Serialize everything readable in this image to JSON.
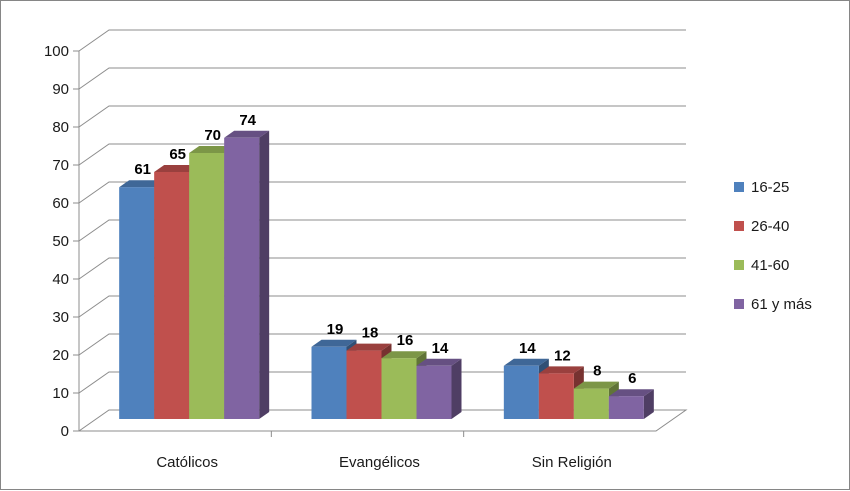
{
  "chart_data": {
    "type": "bar",
    "categories": [
      "Católicos",
      "Evangélicos",
      "Sin Religión"
    ],
    "series": [
      {
        "name": "16-25",
        "values": [
          61,
          19,
          14
        ],
        "color": "#4F81BD"
      },
      {
        "name": "26-40",
        "values": [
          65,
          18,
          12
        ],
        "color": "#C0504D"
      },
      {
        "name": "41-60",
        "values": [
          70,
          16,
          8
        ],
        "color": "#9BBB59"
      },
      {
        "name": "61 y más",
        "values": [
          74,
          14,
          6
        ],
        "color": "#8064A2"
      }
    ],
    "yticks": [
      "0",
      "10",
      "20",
      "30",
      "40",
      "50",
      "60",
      "70",
      "80",
      "90",
      "100"
    ],
    "ylim": [
      0,
      100
    ],
    "grid": true,
    "legend": "right",
    "style": "3d-clustered-column"
  }
}
